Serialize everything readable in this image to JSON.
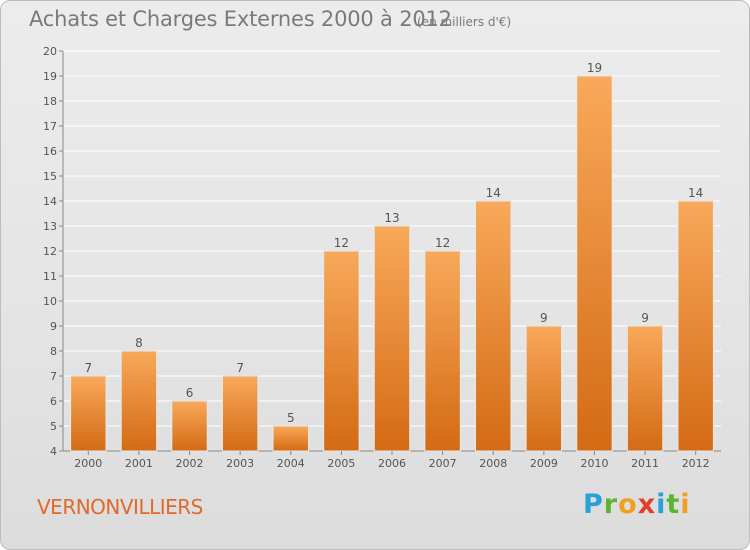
{
  "title": "Achats et Charges Externes 2000 à 2012",
  "subtitle": "(en milliers d'€)",
  "commune": "VERNONVILLIERS",
  "logo": {
    "letters": [
      "P",
      "r",
      "o",
      "x",
      "i",
      "t",
      "i"
    ],
    "colors": [
      "#2aa0d8",
      "#5bb432",
      "#f0a020",
      "#e0402a",
      "#2aa0d8",
      "#5bb432",
      "#f0a020"
    ]
  },
  "colors": {
    "bar_top": "#f8a95a",
    "bar_bottom": "#d46a14",
    "axis_text": "#555555",
    "grid": "#ffffff"
  },
  "chart_data": {
    "type": "bar",
    "categories": [
      "2000",
      "2001",
      "2002",
      "2003",
      "2004",
      "2005",
      "2006",
      "2007",
      "2008",
      "2009",
      "2010",
      "2011",
      "2012"
    ],
    "values": [
      7,
      8,
      6,
      7,
      5,
      12,
      13,
      12,
      14,
      9,
      19,
      9,
      14
    ],
    "data_labels": [
      "7",
      "8",
      "6",
      "7",
      "5",
      "12",
      "13",
      "12",
      "14",
      "9",
      "19",
      "9",
      "14"
    ],
    "y_ticks": [
      "4",
      "5",
      "6",
      "7",
      "8",
      "9",
      "10",
      "11",
      "12",
      "13",
      "14",
      "15",
      "16",
      "17",
      "18",
      "19",
      "20"
    ],
    "ylim": [
      4,
      20
    ],
    "grid": true,
    "xlabel": "",
    "ylabel": ""
  }
}
